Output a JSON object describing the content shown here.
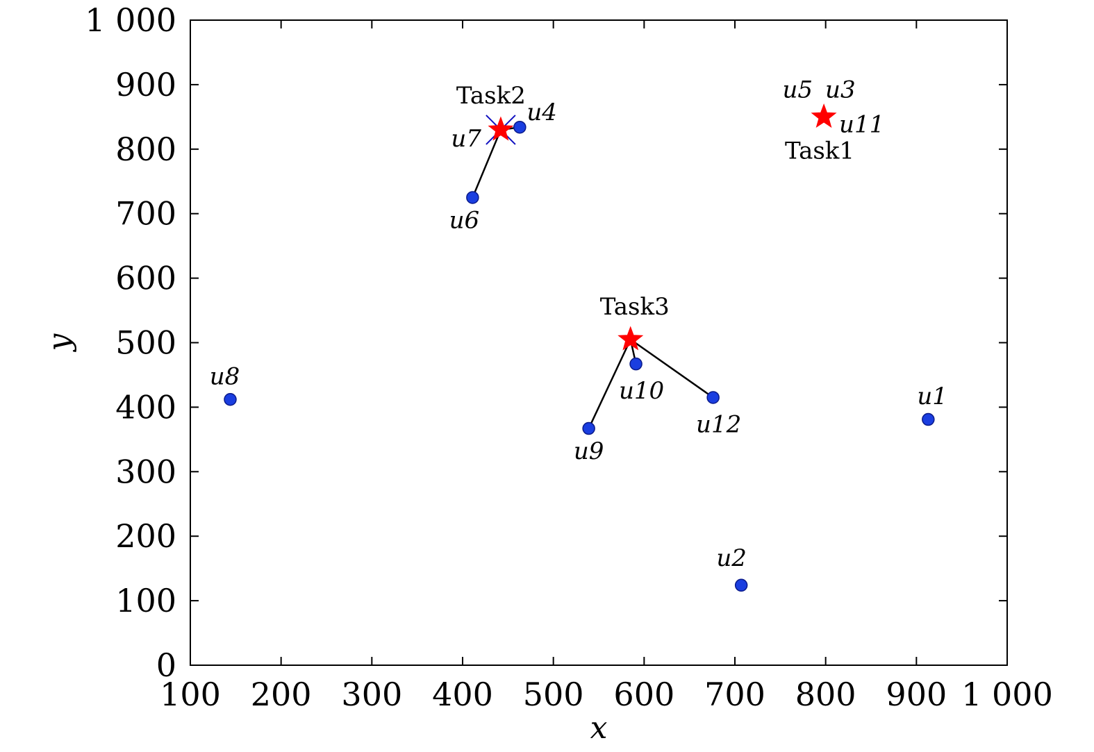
{
  "chart_data": {
    "type": "scatter",
    "xlabel": "x",
    "ylabel": "y",
    "xlim": [
      100,
      1000
    ],
    "ylim": [
      0,
      1000
    ],
    "xticks": [
      100,
      200,
      300,
      400,
      500,
      600,
      700,
      800,
      900,
      1000
    ],
    "yticks": [
      0,
      100,
      200,
      300,
      400,
      500,
      600,
      700,
      800,
      900,
      1000
    ],
    "xtick_labels": [
      "100",
      "200",
      "300",
      "400",
      "500",
      "600",
      "700",
      "800",
      "900",
      "1 000"
    ],
    "ytick_labels": [
      "0",
      "100",
      "200",
      "300",
      "400",
      "500",
      "600",
      "700",
      "800",
      "900",
      "1 000"
    ],
    "grid": false,
    "colors": {
      "uav": "#1a3ee0",
      "task": "#ff0000",
      "lost": "#1010c0",
      "link": "#000000"
    },
    "uavs": [
      {
        "name": "u1",
        "x": 913,
        "y": 381,
        "anchor": "start"
      },
      {
        "name": "u2",
        "x": 707,
        "y": 124,
        "anchor": "middle"
      },
      {
        "name": "u4",
        "x": 463,
        "y": 834,
        "anchor": "start"
      },
      {
        "name": "u6",
        "x": 411,
        "y": 725,
        "anchor": "middle"
      },
      {
        "name": "u8",
        "x": 144,
        "y": 412,
        "anchor": "middle"
      },
      {
        "name": "u9",
        "x": 539,
        "y": 367,
        "anchor": "middle"
      },
      {
        "name": "u10",
        "x": 591,
        "y": 467,
        "anchor": "middle"
      },
      {
        "name": "u12",
        "x": 676,
        "y": 415,
        "anchor": "middle"
      }
    ],
    "hidden_uav_labels": [
      {
        "name": "u7",
        "x": 442,
        "y": 830,
        "anchor": "end"
      },
      {
        "name": "u5",
        "x": 798,
        "y": 850,
        "anchor": "end"
      },
      {
        "name": "u3",
        "x": 798,
        "y": 850,
        "anchor": "start"
      },
      {
        "name": "u11",
        "x": 798,
        "y": 850,
        "anchor": "start"
      }
    ],
    "tasks": [
      {
        "name": "Task1",
        "x": 798,
        "y": 850
      },
      {
        "name": "Task2",
        "x": 442,
        "y": 830
      },
      {
        "name": "Task3",
        "x": 585,
        "y": 505
      }
    ],
    "lost_uav": {
      "name": "u7",
      "x": 442,
      "y": 830
    },
    "links": [
      {
        "from": "u6",
        "to": "Task2"
      },
      {
        "from": "u4",
        "to": "Task2"
      },
      {
        "from": "u9",
        "to": "Task3"
      },
      {
        "from": "u10",
        "to": "Task3"
      },
      {
        "from": "u12",
        "to": "Task3"
      }
    ]
  }
}
